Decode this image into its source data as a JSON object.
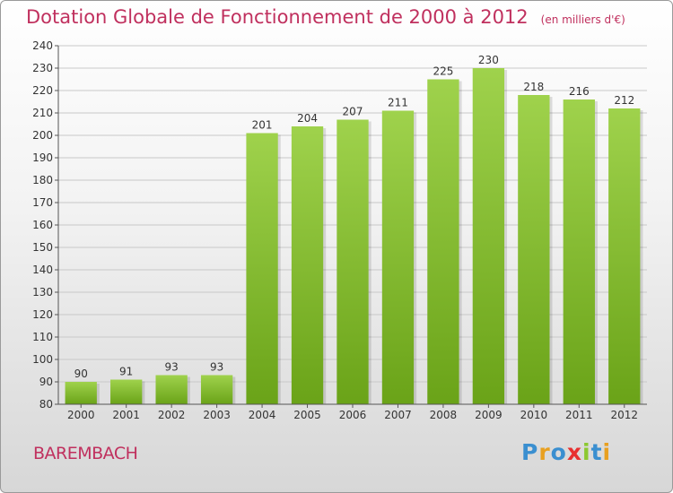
{
  "header": {
    "title": "Dotation Globale de Fonctionnement de 2000 à 2012",
    "unit_note": "(en milliers d'€)"
  },
  "footer": {
    "commune": "BAREMBACH",
    "logo_letters": [
      "P",
      "r",
      "o",
      "x",
      "i",
      "t",
      "i"
    ],
    "logo_colors": [
      "#3a8fd0",
      "#e8a020",
      "#3a8fd0",
      "#e83030",
      "#8cc830",
      "#3a8fd0",
      "#e8a020"
    ]
  },
  "colors": {
    "bar_top": "#9fd24c",
    "bar_bottom": "#6aa318",
    "grid": "#c8c8c8",
    "axis": "#555555",
    "text": "#333333"
  },
  "chart_data": {
    "type": "bar",
    "categories": [
      "2000",
      "2001",
      "2002",
      "2003",
      "2004",
      "2005",
      "2006",
      "2007",
      "2008",
      "2009",
      "2010",
      "2011",
      "2012"
    ],
    "values": [
      90,
      91,
      93,
      93,
      201,
      204,
      207,
      211,
      225,
      230,
      218,
      216,
      212
    ],
    "title": "Dotation Globale de Fonctionnement de 2000 à 2012",
    "xlabel": "",
    "ylabel": "",
    "ylim": [
      80,
      240
    ],
    "yticks": [
      80,
      90,
      100,
      110,
      120,
      130,
      140,
      150,
      160,
      170,
      180,
      190,
      200,
      210,
      220,
      230,
      240
    ],
    "grid": true,
    "data_labels": true
  }
}
